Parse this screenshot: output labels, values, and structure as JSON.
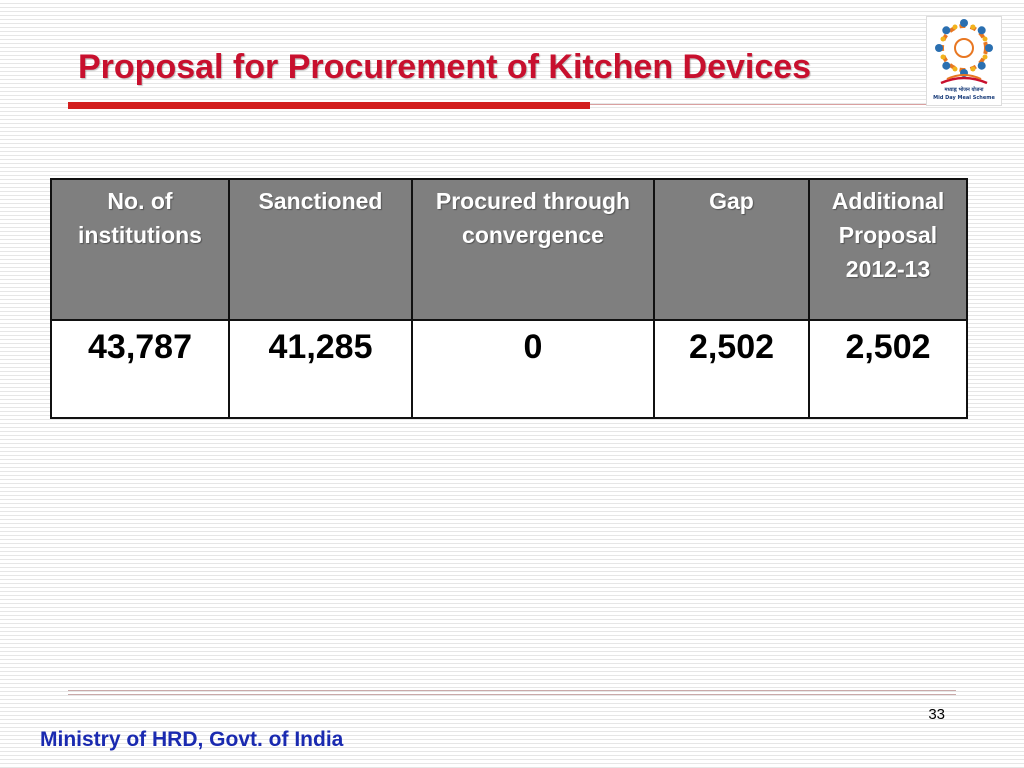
{
  "slide": {
    "title": "Proposal for Procurement of Kitchen Devices",
    "page_number": "33",
    "footer": "Ministry of HRD, Govt. of India"
  },
  "logo": {
    "hindi_text": "मध्याह्न भोजन योजना",
    "english_text": "Mid Day Meal Scheme"
  },
  "table": {
    "headers": [
      "No. of institutions",
      "Sanctioned",
      "Procured through convergence",
      "Gap",
      "Additional Proposal 2012-13"
    ],
    "row": [
      "43,787",
      "41,285",
      "0",
      "2,502",
      "2,502"
    ]
  },
  "colors": {
    "title": "#c8102e",
    "header_bg": "#7f7f7f",
    "footer_text": "#1a2ab0"
  }
}
